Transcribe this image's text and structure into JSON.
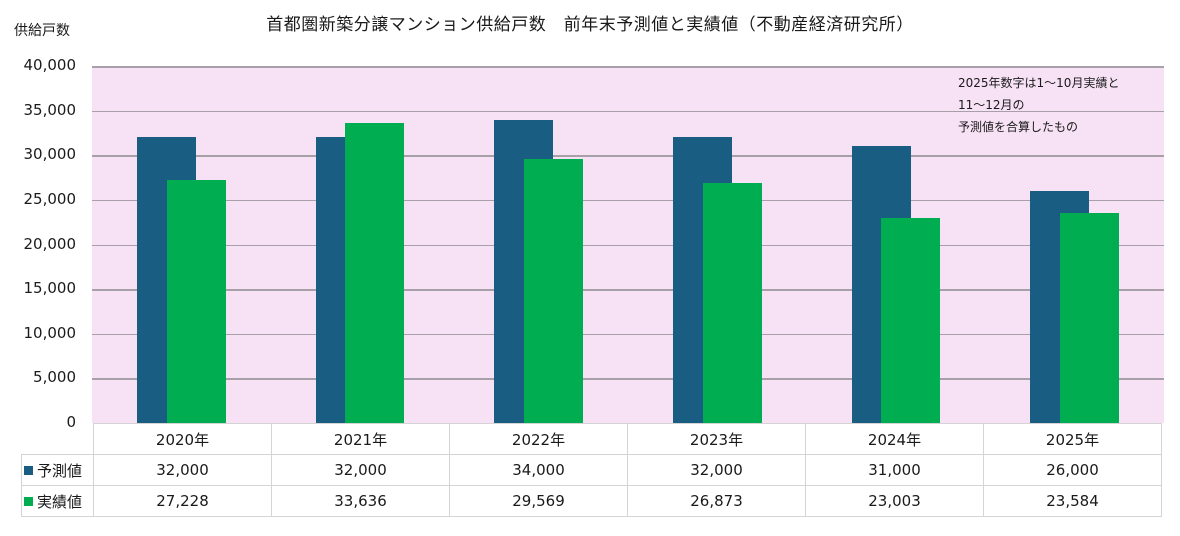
{
  "chart_data": {
    "type": "bar",
    "title": "首都圏新築分譲マンション供給戸数　前年末予測値と実績値（不動産経済研究所）",
    "ylabel": "供給戸数",
    "xlabel": "",
    "ylim": [
      0,
      40000
    ],
    "yticks": [
      "40,000",
      "35,000",
      "30,000",
      "25,000",
      "20,000",
      "15,000",
      "10,000",
      "5,000",
      "0"
    ],
    "grid": true,
    "legend_position": "data-table",
    "categories": [
      "2020年",
      "2021年",
      "2022年",
      "2023年",
      "2024年",
      "2025年"
    ],
    "series": [
      {
        "name": "予測値",
        "color": "#195d82",
        "values": [
          32000,
          32000,
          34000,
          32000,
          31000,
          26000
        ],
        "labels": [
          "32,000",
          "32,000",
          "34,000",
          "32,000",
          "31,000",
          "26,000"
        ]
      },
      {
        "name": "実績値",
        "color": "#00ad50",
        "values": [
          27228,
          33636,
          29569,
          26873,
          23003,
          23584
        ],
        "labels": [
          "27,228",
          "33,636",
          "29,569",
          "26,873",
          "23,003",
          "23,584"
        ]
      }
    ],
    "annotation": [
      "2025年数字は1～10月実績と",
      "11～12月の",
      "予測値を合算したもの"
    ]
  },
  "colors": {
    "plot_background": "#f7e1f4",
    "gridline": "#a8a0a8"
  }
}
